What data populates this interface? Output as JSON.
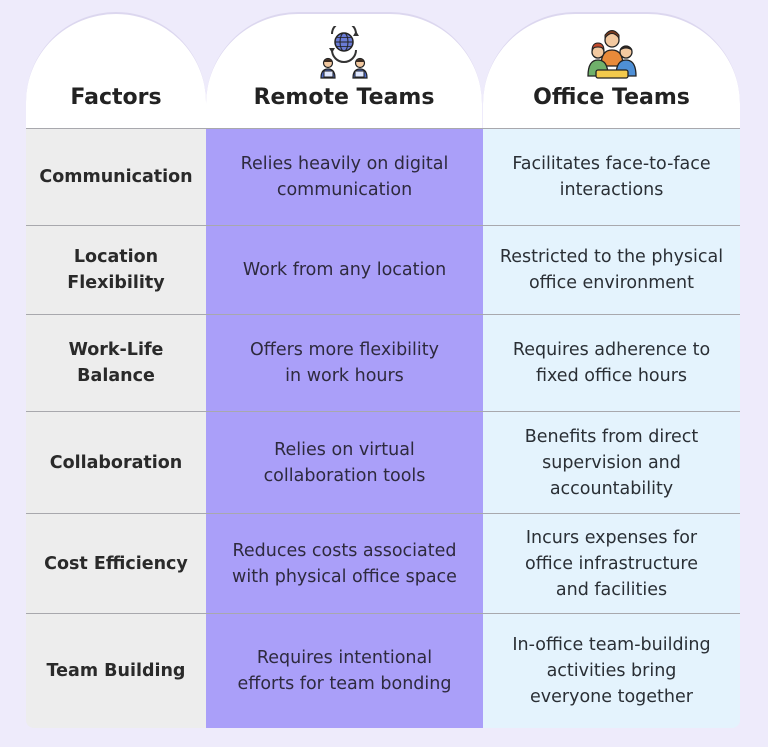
{
  "headers": {
    "factors": "Factors",
    "remote": "Remote Teams",
    "office": "Office Teams"
  },
  "icons": {
    "remote": "remote-workers-globe-icon",
    "office": "office-team-group-icon"
  },
  "colors": {
    "remote_column": "#aa9ff9",
    "office_column": "#e4f3fd",
    "factor_column": "#ededed",
    "background": "#eeebfb"
  },
  "rows": [
    {
      "factor": "Communication",
      "remote": "Relies heavily on digital\ncommunication",
      "office": "Facilitates face-to-face\ninteractions"
    },
    {
      "factor": "Location\nFlexibility",
      "remote": "Work from any location",
      "office": "Restricted to the physical\noffice environment"
    },
    {
      "factor": "Work-Life\nBalance",
      "remote": "Offers more flexibility\nin work hours",
      "office": "Requires adherence to\nfixed office hours"
    },
    {
      "factor": "Collaboration",
      "remote": "Relies on virtual\ncollaboration tools",
      "office": "Benefits from direct\nsupervision and\naccountability"
    },
    {
      "factor": "Cost Efficiency",
      "remote": "Reduces costs associated\nwith physical office space",
      "office": "Incurs expenses for\noffice infrastructure\nand facilities"
    },
    {
      "factor": "Team Building",
      "remote": "Requires intentional\nefforts for team bonding",
      "office": "In-office team-building\nactivities bring\neveryone together"
    }
  ]
}
